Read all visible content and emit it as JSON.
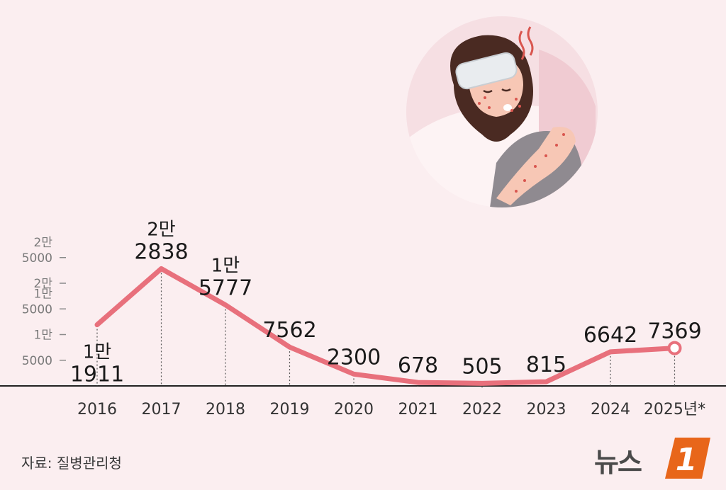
{
  "chart_data": {
    "type": "line",
    "categories": [
      "2016",
      "2017",
      "2018",
      "2019",
      "2020",
      "2021",
      "2022",
      "2023",
      "2024",
      "2025년*"
    ],
    "values": [
      11911,
      22838,
      15777,
      7562,
      2300,
      678,
      505,
      815,
      6642,
      7369
    ],
    "data_labels": [
      [
        "1만",
        "1911"
      ],
      [
        "2만",
        "2838"
      ],
      [
        "1만",
        "5777"
      ],
      [
        "7562"
      ],
      [
        "2300"
      ],
      [
        "678"
      ],
      [
        "505"
      ],
      [
        "815"
      ],
      [
        "6642"
      ],
      [
        "7369"
      ]
    ],
    "y_ticks": [
      {
        "value": 5000,
        "lines": [
          "5000"
        ]
      },
      {
        "value": 10000,
        "lines": [
          "1만"
        ]
      },
      {
        "value": 15000,
        "lines": [
          "1만",
          "5000"
        ]
      },
      {
        "value": 20000,
        "lines": [
          "2만"
        ]
      },
      {
        "value": 25000,
        "lines": [
          "2만",
          "5000"
        ]
      }
    ],
    "ylim": [
      0,
      25000
    ],
    "grid": false,
    "line_color": "#e8707c",
    "last_point_marker": "open-circle"
  },
  "source": "자료: 질병관리청",
  "logo": {
    "text": "뉴스",
    "badge": "1",
    "badge_color": "#e8661a"
  },
  "illustration": {
    "icon": "sick-girl-with-rash-illustration"
  }
}
